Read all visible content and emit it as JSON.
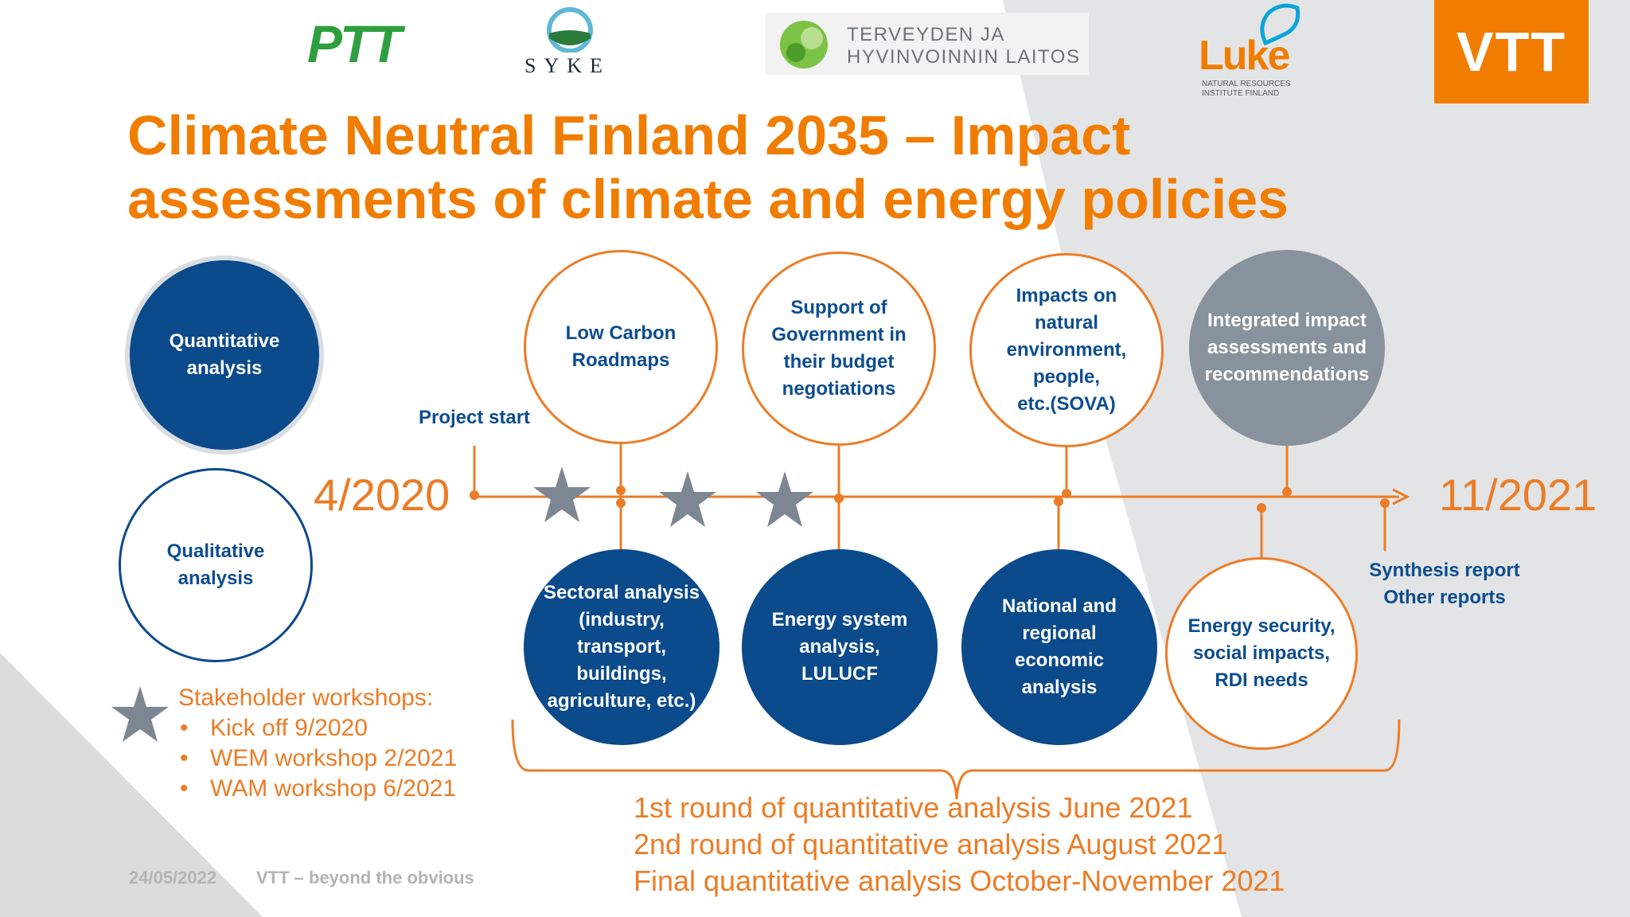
{
  "logos": {
    "ptt": "PTT",
    "syke": "SYKE",
    "thl_line1": "TERVEYDEN JA",
    "thl_line2": "HYVINVOINNIN LAITOS",
    "luke": "Luke",
    "luke_sub_line1": "NATURAL RESOURCES",
    "luke_sub_line2": "INSTITUTE FINLAND",
    "vtt": "VTT"
  },
  "title": {
    "line1": "Climate Neutral Finland 2035 – Impact",
    "line2": "assessments of climate and energy policies"
  },
  "legend": {
    "quantitative": "Quantitative\nanalysis",
    "qualitative": "Qualitative\nanalysis"
  },
  "timeline": {
    "start_label": "Project start",
    "start_date": "4/2020",
    "end_date": "11/2021",
    "end_label_line1": "Synthesis report",
    "end_label_line2": "Other reports"
  },
  "circles_above": [
    {
      "text": "Low Carbon\nRoadmaps",
      "kind": "qualitative"
    },
    {
      "text": "Support of\nGovernment in\ntheir budget\nnegotiations",
      "kind": "qualitative"
    },
    {
      "text": "Impacts on\nnatural\nenvironment,\npeople,\netc.(SOVA)",
      "kind": "qualitative"
    },
    {
      "text": "Integrated impact\nassessments and\nrecommendations",
      "kind": "integrated"
    }
  ],
  "circles_below": [
    {
      "text": "Sectoral analysis\n(industry,\ntransport,\nbuildings,\nagriculture, etc.)",
      "kind": "quantitative"
    },
    {
      "text": "Energy system\nanalysis,\nLULUCF",
      "kind": "quantitative"
    },
    {
      "text": "National and\nregional\neconomic\nanalysis",
      "kind": "quantitative"
    },
    {
      "text": "Energy security,\nsocial impacts,\nRDI needs",
      "kind": "qualitative"
    }
  ],
  "workshops": {
    "heading": "Stakeholder workshops:",
    "items": [
      "Kick off  9/2020",
      "WEM workshop 2/2021",
      "WAM workshop 6/2021"
    ]
  },
  "rounds": [
    "1st round of quantitative analysis June 2021",
    "2nd round of quantitative analysis August 2021",
    "Final quantitative analysis October-November 2021"
  ],
  "footer": {
    "date": "24/05/2022",
    "slogan": "VTT – beyond the obvious"
  },
  "colors": {
    "orange": "#ec7c26",
    "navy": "#0b4a8b",
    "gray": "#88929c",
    "star": "#7d8793"
  }
}
